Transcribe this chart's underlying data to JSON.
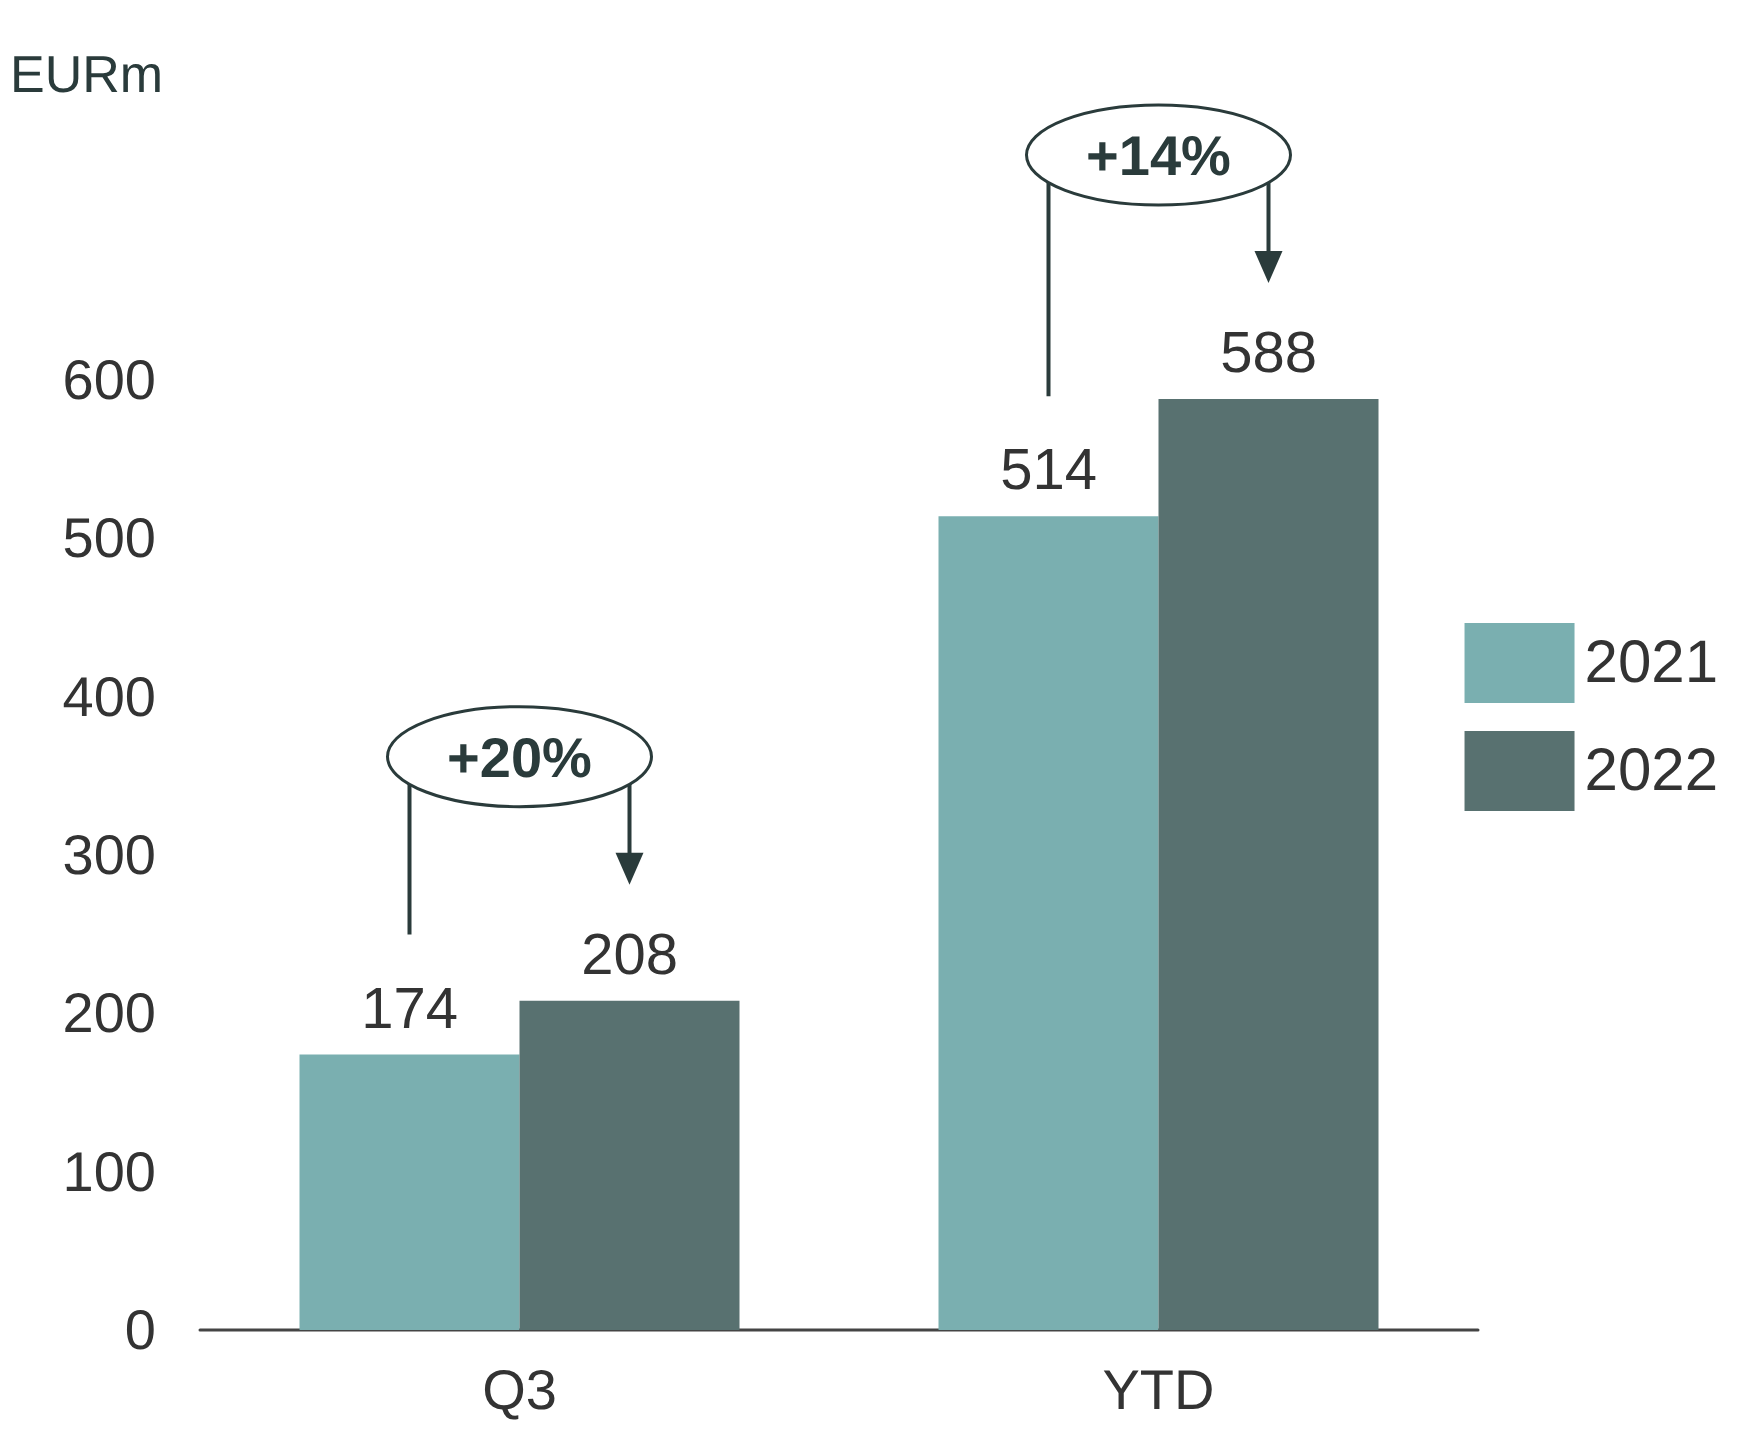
{
  "chart_data": {
    "type": "bar",
    "ylabel": "EURm",
    "categories": [
      "Q3",
      "YTD"
    ],
    "series": [
      {
        "name": "2021",
        "color": "#7aafb0",
        "values": [
          174,
          514
        ]
      },
      {
        "name": "2022",
        "color": "#587170",
        "values": [
          208,
          588
        ]
      }
    ],
    "ylim": [
      0,
      600
    ],
    "yticks": [
      0,
      100,
      200,
      300,
      400,
      500,
      600
    ],
    "grid": false,
    "legend": "right",
    "data_labels": true,
    "annotations": [
      "+20%",
      "+14%"
    ]
  }
}
